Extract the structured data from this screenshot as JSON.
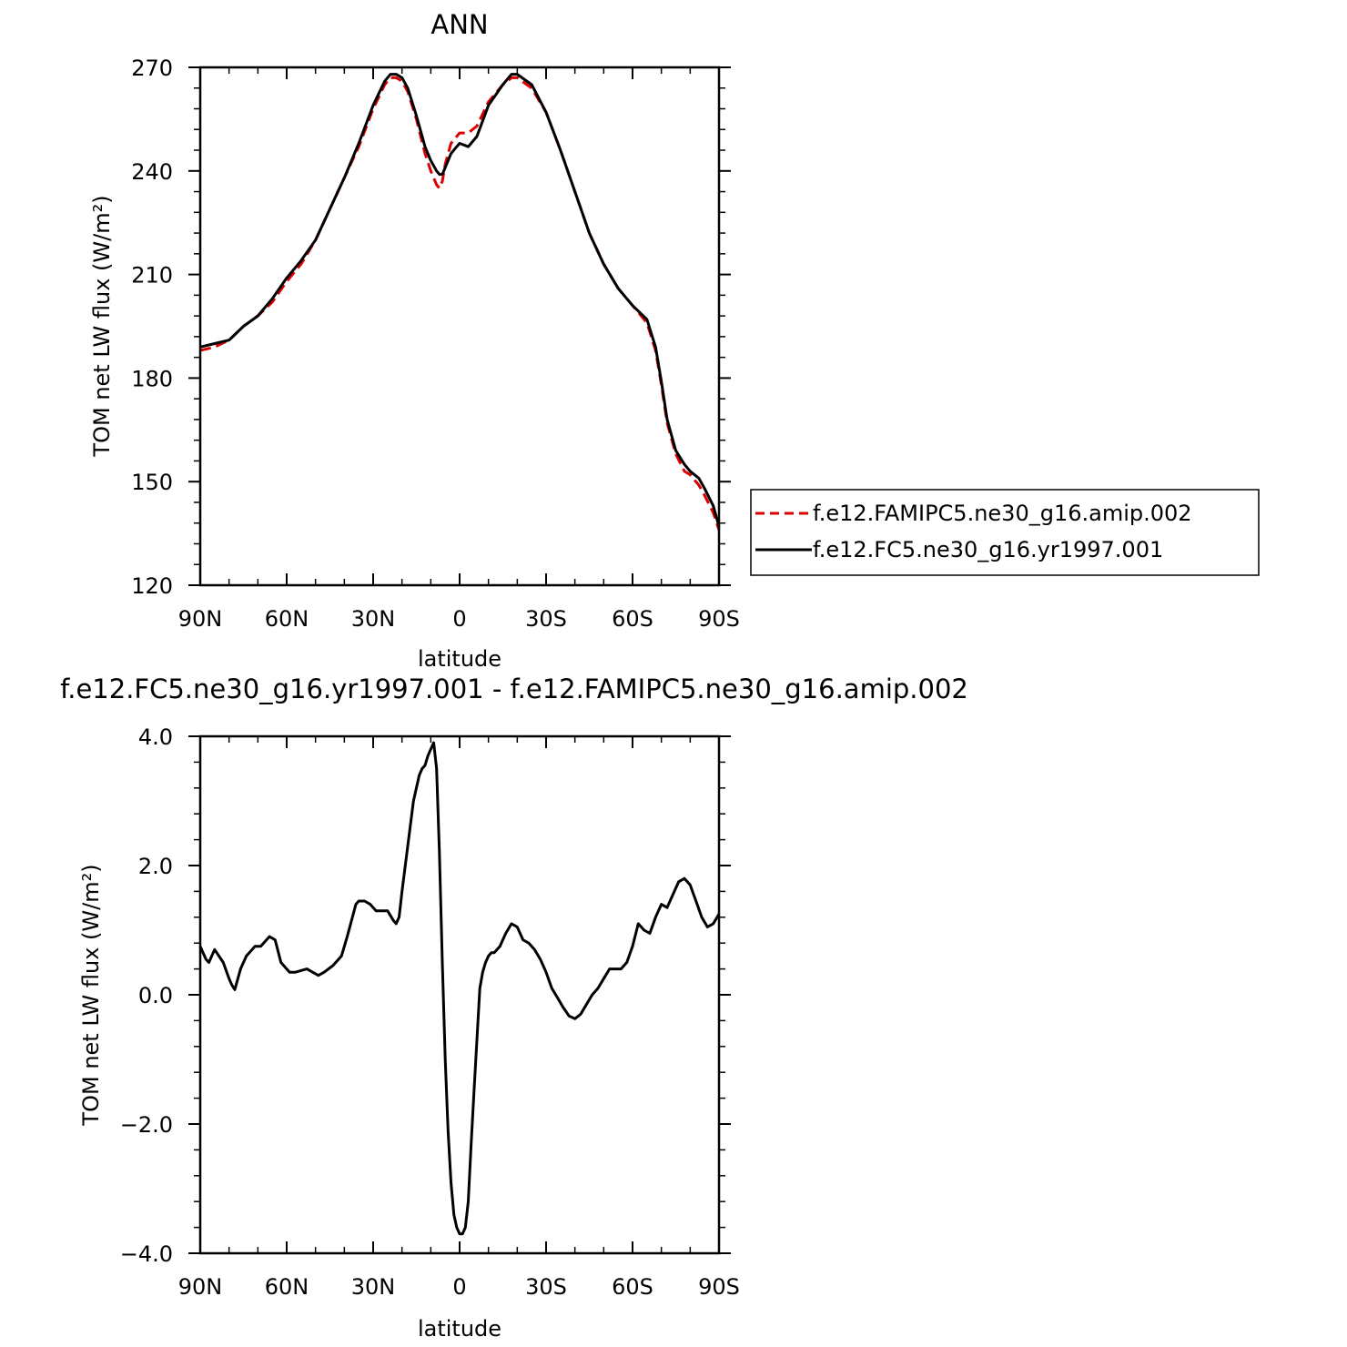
{
  "chart_data": [
    {
      "type": "line",
      "title": "ANN",
      "xlabel": "latitude",
      "ylabel": "TOM net LW flux (W/m²)",
      "x_tick_labels": [
        "90N",
        "60N",
        "30N",
        "0",
        "30S",
        "60S",
        "90S"
      ],
      "x_ticks": [
        90,
        60,
        30,
        0,
        -30,
        -60,
        -90
      ],
      "xlim": [
        90,
        -90
      ],
      "y_tick_labels": [
        "120",
        "150",
        "180",
        "210",
        "240",
        "270"
      ],
      "y_ticks": [
        120,
        150,
        180,
        210,
        240,
        270
      ],
      "ylim": [
        120,
        270
      ],
      "legend_position": "right",
      "series": [
        {
          "name": "f.e12.FAMIPC5.ne30_g16.amip.002",
          "color": "#dd0000",
          "dash": true,
          "x": [
            90,
            85,
            80,
            75,
            70,
            65,
            60,
            55,
            50,
            45,
            40,
            35,
            30,
            26,
            24,
            22,
            20,
            18,
            15,
            12,
            10,
            8,
            7,
            6,
            5,
            3,
            1,
            0,
            -3,
            -6,
            -10,
            -15,
            -18,
            -20,
            -25,
            -30,
            -35,
            -40,
            -45,
            -50,
            -55,
            -60,
            -65,
            -68,
            -70,
            -72,
            -75,
            -78,
            -80,
            -83,
            -85,
            -88,
            -90
          ],
          "values": [
            188,
            189,
            191,
            195,
            198,
            202,
            208,
            213,
            220,
            229,
            238,
            247,
            258,
            265,
            267,
            267,
            266,
            263,
            255,
            245,
            240,
            236,
            235,
            237,
            242,
            248,
            250,
            251,
            251,
            253,
            260,
            265,
            267,
            267,
            264,
            257,
            246,
            234,
            222,
            213,
            206,
            201,
            196,
            188,
            178,
            167,
            158,
            153,
            152,
            149,
            146,
            141,
            136
          ]
        },
        {
          "name": "f.e12.FC5.ne30_g16.yr1997.001",
          "color": "#000000",
          "dash": false,
          "x": [
            90,
            85,
            80,
            75,
            70,
            65,
            60,
            55,
            50,
            45,
            40,
            35,
            30,
            26,
            24,
            22,
            20,
            18,
            15,
            12,
            10,
            8,
            7,
            6,
            5,
            3,
            1,
            0,
            -3,
            -6,
            -10,
            -15,
            -18,
            -20,
            -25,
            -30,
            -35,
            -40,
            -45,
            -50,
            -55,
            -60,
            -65,
            -68,
            -70,
            -72,
            -75,
            -78,
            -80,
            -83,
            -85,
            -88,
            -90
          ],
          "values": [
            189,
            190,
            191,
            195,
            198,
            203,
            209,
            214,
            220,
            229,
            238,
            248,
            259,
            266,
            268,
            268,
            267,
            264,
            256,
            247,
            243,
            240,
            239,
            239,
            241,
            245,
            247,
            248,
            247,
            250,
            259,
            265,
            268,
            268,
            265,
            257,
            246,
            234,
            222,
            213,
            206,
            201,
            197,
            189,
            179,
            168,
            159,
            155,
            153,
            151,
            148,
            143,
            137
          ]
        }
      ]
    },
    {
      "type": "line",
      "title": "f.e12.FC5.ne30_g16.yr1997.001 - f.e12.FAMIPC5.ne30_g16.amip.002",
      "xlabel": "latitude",
      "ylabel": "TOM net LW flux (W/m²)",
      "x_tick_labels": [
        "90N",
        "60N",
        "30N",
        "0",
        "30S",
        "60S",
        "90S"
      ],
      "x_ticks": [
        90,
        60,
        30,
        0,
        -30,
        -60,
        -90
      ],
      "xlim": [
        90,
        -90
      ],
      "y_tick_labels": [
        "−4.0",
        "−2.0",
        "0.0",
        "2.0",
        "4.0"
      ],
      "y_ticks": [
        -4,
        -2,
        0,
        2,
        4
      ],
      "ylim": [
        -4,
        4
      ],
      "series": [
        {
          "color": "#000000",
          "dash": false,
          "x": [
            90,
            88,
            87,
            85,
            82,
            80,
            79,
            78,
            76,
            74,
            71,
            69,
            66,
            64,
            62,
            59,
            57,
            53,
            51,
            49,
            47,
            44,
            41,
            39,
            36,
            35,
            33,
            31,
            29,
            27,
            25,
            23,
            22,
            21,
            20,
            18,
            16,
            14,
            13,
            12,
            11,
            10,
            9,
            8,
            7,
            6,
            5,
            4,
            3,
            2,
            1,
            0,
            -1,
            -2,
            -3,
            -4,
            -5,
            -6,
            -7,
            -8,
            -9,
            -10,
            -11,
            -12,
            -14,
            -16,
            -18,
            -20,
            -22,
            -24,
            -26,
            -28,
            -30,
            -32,
            -34,
            -36,
            -38,
            -40,
            -42,
            -44,
            -46,
            -48,
            -50,
            -52,
            -54,
            -56,
            -58,
            -60,
            -62,
            -64,
            -66,
            -68,
            -70,
            -72,
            -74,
            -76,
            -78,
            -80,
            -82,
            -84,
            -86,
            -88,
            -90
          ],
          "values": [
            0.75,
            0.55,
            0.5,
            0.7,
            0.5,
            0.25,
            0.15,
            0.08,
            0.4,
            0.6,
            0.75,
            0.75,
            0.9,
            0.85,
            0.5,
            0.35,
            0.35,
            0.4,
            0.35,
            0.3,
            0.35,
            0.45,
            0.6,
            0.9,
            1.4,
            1.45,
            1.45,
            1.4,
            1.3,
            1.3,
            1.3,
            1.15,
            1.1,
            1.2,
            1.6,
            2.3,
            3.0,
            3.4,
            3.5,
            3.55,
            3.7,
            3.8,
            3.9,
            3.5,
            2.2,
            0.5,
            -1.0,
            -2.1,
            -2.9,
            -3.4,
            -3.6,
            -3.7,
            -3.7,
            -3.6,
            -3.2,
            -2.3,
            -1.5,
            -0.7,
            0.1,
            0.35,
            0.5,
            0.6,
            0.65,
            0.65,
            0.75,
            0.95,
            1.1,
            1.05,
            0.85,
            0.8,
            0.7,
            0.55,
            0.35,
            0.1,
            -0.05,
            -0.2,
            -0.33,
            -0.37,
            -0.3,
            -0.15,
            0.0,
            0.1,
            0.25,
            0.4,
            0.4,
            0.4,
            0.5,
            0.75,
            1.1,
            1.0,
            0.95,
            1.2,
            1.4,
            1.35,
            1.55,
            1.75,
            1.8,
            1.7,
            1.45,
            1.2,
            1.05,
            1.1,
            1.25
          ]
        }
      ]
    }
  ]
}
